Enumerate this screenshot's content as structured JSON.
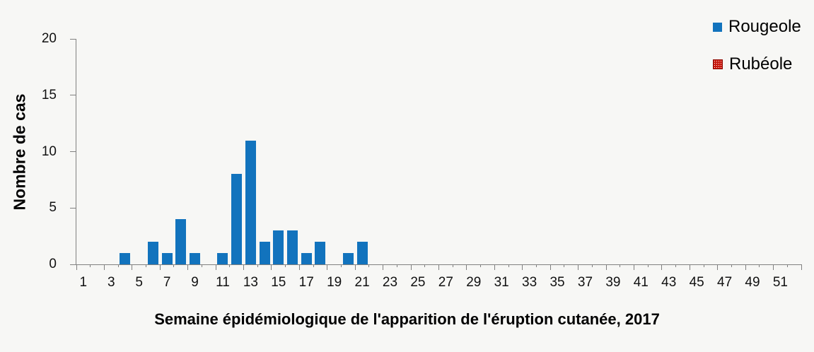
{
  "figure": {
    "background_color": "#f7f7f5",
    "axis_color": "#808080",
    "text_color": "#000000"
  },
  "legend": {
    "position": "top-right",
    "items": [
      {
        "label": "Rougeole",
        "swatch": "solid-blue-square",
        "color": "#1273bd"
      },
      {
        "label": "Rubéole",
        "swatch": "dotted-red-square",
        "color": "#c8170d",
        "border_color": "#8f0f07"
      }
    ]
  },
  "chart_data": {
    "type": "bar",
    "title": "",
    "xlabel": "Semaine épidémiologique de l'apparition de l'éruption cutanée, 2017",
    "ylabel": "Nombre de cas",
    "weeks": 52,
    "x_tick_labels": [
      "1",
      "3",
      "5",
      "7",
      "9",
      "11",
      "13",
      "15",
      "17",
      "19",
      "21",
      "23",
      "25",
      "27",
      "29",
      "31",
      "33",
      "35",
      "37",
      "39",
      "41",
      "43",
      "45",
      "47",
      "49",
      "51"
    ],
    "y_ticks": [
      0,
      5,
      10,
      15,
      20
    ],
    "ylim": [
      0,
      20
    ],
    "grid": false,
    "legend_position": "top-right",
    "series": [
      {
        "name": "Rougeole",
        "color": "#1273bd",
        "pattern": "solid",
        "values_by_week": {
          "4": 1,
          "6": 2,
          "7": 1,
          "8": 4,
          "9": 1,
          "11": 1,
          "12": 8,
          "13": 11,
          "14": 2,
          "15": 3,
          "16": 3,
          "17": 1,
          "18": 2,
          "20": 1,
          "21": 2
        }
      },
      {
        "name": "Rubéole",
        "color": "#c8170d",
        "pattern": "dots",
        "values_by_week": {}
      }
    ]
  }
}
